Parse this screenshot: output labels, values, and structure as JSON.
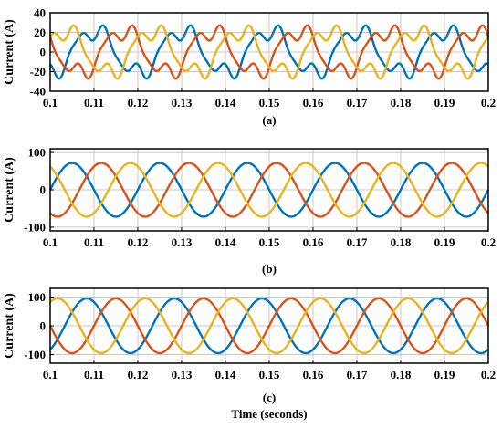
{
  "colors": {
    "phase_a": "#0072BD",
    "phase_b": "#D95319",
    "phase_c": "#EDB120",
    "grid": "#c8c8c8"
  },
  "chart_data": [
    {
      "type": "line",
      "caption": "(a)",
      "ylabel": "Current (A)",
      "xlabel": "",
      "xlim": [
        0.1,
        0.2
      ],
      "ylim": [
        -40,
        40
      ],
      "grid": true,
      "xticks": [
        "0.1",
        "0.11",
        "0.12",
        "0.13",
        "0.14",
        "0.15",
        "0.16",
        "0.17",
        "0.18",
        "0.19",
        "0.2"
      ],
      "yticks": [
        "40",
        "20",
        "0",
        "-20",
        "-40"
      ],
      "frequency_hz": 50,
      "series": [
        {
          "color": "#0072BD",
          "amplitude": 22,
          "phase_deg": -90,
          "distortion": 0.35
        },
        {
          "color": "#D95319",
          "amplitude": 22,
          "phase_deg": 150,
          "distortion": 0.35
        },
        {
          "color": "#EDB120",
          "amplitude": 22,
          "phase_deg": 30,
          "distortion": 0.35
        }
      ]
    },
    {
      "type": "line",
      "caption": "(b)",
      "ylabel": "Current (A)",
      "xlabel": "",
      "xlim": [
        0.1,
        0.2
      ],
      "ylim": [
        -110,
        110
      ],
      "grid": true,
      "xticks": [
        "0.1",
        "0.11",
        "0.12",
        "0.13",
        "0.14",
        "0.15",
        "0.16",
        "0.17",
        "0.18",
        "0.19",
        "0.2"
      ],
      "yticks": [
        "100",
        "0",
        "-100"
      ],
      "frequency_hz": 50,
      "series": [
        {
          "color": "#0072BD",
          "amplitude": 72,
          "phase_deg": 0,
          "distortion": 0
        },
        {
          "color": "#D95319",
          "amplitude": 72,
          "phase_deg": -120,
          "distortion": 0
        },
        {
          "color": "#EDB120",
          "amplitude": 72,
          "phase_deg": 120,
          "distortion": 0
        }
      ]
    },
    {
      "type": "line",
      "caption": "(c)",
      "ylabel": "Current (A)",
      "xlabel": "Time (seconds)",
      "xlim": [
        0.1,
        0.2
      ],
      "ylim": [
        -130,
        130
      ],
      "grid": true,
      "xticks": [
        "0.1",
        "0.11",
        "0.12",
        "0.13",
        "0.14",
        "0.15",
        "0.16",
        "0.17",
        "0.18",
        "0.19",
        "0.2"
      ],
      "yticks": [
        "100",
        "0",
        "-100"
      ],
      "frequency_hz": 50,
      "series": [
        {
          "color": "#0072BD",
          "amplitude": 95,
          "phase_deg": -60,
          "distortion": 0
        },
        {
          "color": "#D95319",
          "amplitude": 95,
          "phase_deg": -180,
          "distortion": 0
        },
        {
          "color": "#EDB120",
          "amplitude": 95,
          "phase_deg": 60,
          "distortion": 0
        }
      ]
    }
  ]
}
